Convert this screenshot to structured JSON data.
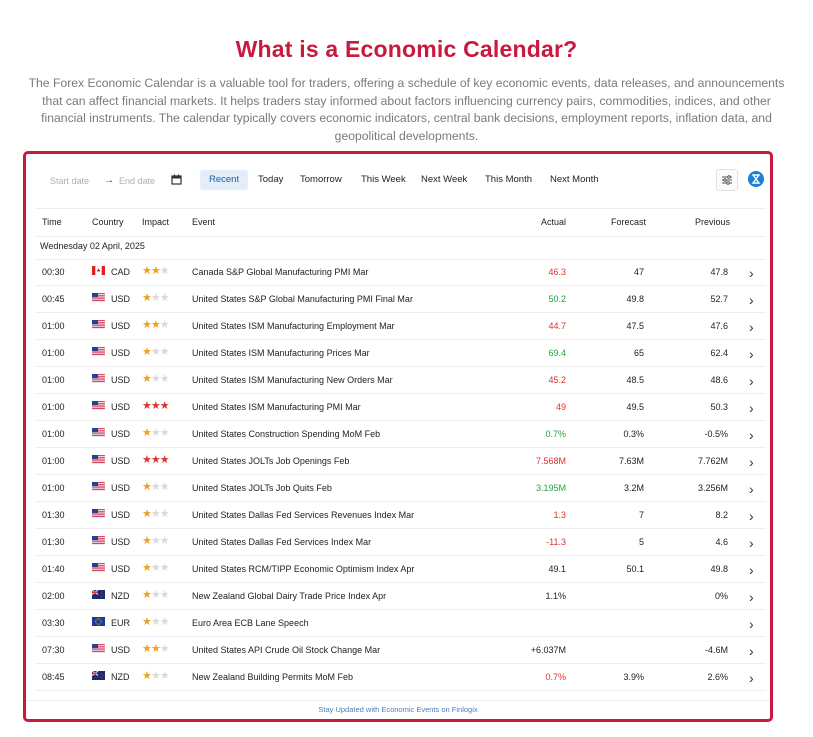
{
  "heading": "What is a Economic Calendar?",
  "intro": "The Forex Economic Calendar is a valuable tool for traders, offering a schedule of key economic events, data releases, and announcements that can affect financial markets. It helps traders stay informed about factors influencing currency pairs, commodities, indices, and other financial instruments. The calendar typically covers economic indicators, central bank decisions, employment reports, inflation data, and geopolitical developments.",
  "toolbar": {
    "start_placeholder": "Start date",
    "arrow": "→",
    "end_placeholder": "End date",
    "tabs": [
      "Recent",
      "Today",
      "Tomorrow",
      "This Week",
      "Next Week",
      "This Month",
      "Next Month"
    ],
    "active_tab": "Recent"
  },
  "columns": {
    "time": "Time",
    "country": "Country",
    "impact": "Impact",
    "event": "Event",
    "actual": "Actual",
    "forecast": "Forecast",
    "previous": "Previous"
  },
  "date_group": "Wednesday 02 April, 2025",
  "colors": {
    "accent": "#c8193e",
    "positive": "#21a641",
    "negative": "#e03131",
    "star_on_low": "#f0a020",
    "star_on_high": "#e03131",
    "star_off": "#d9d9d9"
  },
  "events": [
    {
      "time": "00:30",
      "flag": "ca-flag",
      "currency": "CAD",
      "impact": 2,
      "event": "Canada S&P Global Manufacturing PMI Mar",
      "actual": "46.3",
      "actual_tone": "neg",
      "forecast": "47",
      "previous": "47.8"
    },
    {
      "time": "00:45",
      "flag": "us-flag",
      "currency": "USD",
      "impact": 1,
      "event": "United States S&P Global Manufacturing PMI Final Mar",
      "actual": "50.2",
      "actual_tone": "pos",
      "forecast": "49.8",
      "previous": "52.7"
    },
    {
      "time": "01:00",
      "flag": "us-flag",
      "currency": "USD",
      "impact": 2,
      "event": "United States ISM Manufacturing Employment Mar",
      "actual": "44.7",
      "actual_tone": "neg",
      "forecast": "47.5",
      "previous": "47.6"
    },
    {
      "time": "01:00",
      "flag": "us-flag",
      "currency": "USD",
      "impact": 1,
      "event": "United States ISM Manufacturing Prices Mar",
      "actual": "69.4",
      "actual_tone": "pos",
      "forecast": "65",
      "previous": "62.4"
    },
    {
      "time": "01:00",
      "flag": "us-flag",
      "currency": "USD",
      "impact": 1,
      "event": "United States ISM Manufacturing New Orders Mar",
      "actual": "45.2",
      "actual_tone": "neg",
      "forecast": "48.5",
      "previous": "48.6"
    },
    {
      "time": "01:00",
      "flag": "us-flag",
      "currency": "USD",
      "impact": 3,
      "event": "United States ISM Manufacturing PMI Mar",
      "actual": "49",
      "actual_tone": "neg",
      "forecast": "49.5",
      "previous": "50.3"
    },
    {
      "time": "01:00",
      "flag": "us-flag",
      "currency": "USD",
      "impact": 1,
      "event": "United States Construction Spending MoM Feb",
      "actual": "0.7%",
      "actual_tone": "pos",
      "forecast": "0.3%",
      "previous": "-0.5%"
    },
    {
      "time": "01:00",
      "flag": "us-flag",
      "currency": "USD",
      "impact": 3,
      "event": "United States JOLTs Job Openings Feb",
      "actual": "7.568M",
      "actual_tone": "neg",
      "forecast": "7.63M",
      "previous": "7.762M"
    },
    {
      "time": "01:00",
      "flag": "us-flag",
      "currency": "USD",
      "impact": 1,
      "event": "United States JOLTs Job Quits Feb",
      "actual": "3.195M",
      "actual_tone": "pos",
      "forecast": "3.2M",
      "previous": "3.256M"
    },
    {
      "time": "01:30",
      "flag": "us-flag",
      "currency": "USD",
      "impact": 1,
      "event": "United States Dallas Fed Services Revenues Index Mar",
      "actual": "1.3",
      "actual_tone": "neg",
      "forecast": "7",
      "previous": "8.2"
    },
    {
      "time": "01:30",
      "flag": "us-flag",
      "currency": "USD",
      "impact": 1,
      "event": "United States Dallas Fed Services Index Mar",
      "actual": "-11.3",
      "actual_tone": "neg",
      "forecast": "5",
      "previous": "4.6"
    },
    {
      "time": "01:40",
      "flag": "us-flag",
      "currency": "USD",
      "impact": 1,
      "event": "United States RCM/TIPP Economic Optimism Index Apr",
      "actual": "49.1",
      "actual_tone": "neu",
      "forecast": "50.1",
      "previous": "49.8"
    },
    {
      "time": "02:00",
      "flag": "nz-flag",
      "currency": "NZD",
      "impact": 1,
      "event": "New Zealand Global Dairy Trade Price Index Apr",
      "actual": "1.1%",
      "actual_tone": "neu",
      "forecast": "",
      "previous": "0%"
    },
    {
      "time": "03:30",
      "flag": "eu-flag",
      "currency": "EUR",
      "impact": 1,
      "event": "Euro Area ECB Lane Speech",
      "actual": "",
      "actual_tone": "neu",
      "forecast": "",
      "previous": ""
    },
    {
      "time": "07:30",
      "flag": "us-flag",
      "currency": "USD",
      "impact": 2,
      "event": "United States API Crude Oil Stock Change Mar",
      "actual": "+6.037M",
      "actual_tone": "neu",
      "forecast": "",
      "previous": "-4.6M"
    },
    {
      "time": "08:45",
      "flag": "nz-flag",
      "currency": "NZD",
      "impact": 1,
      "event": "New Zealand Building Permits MoM Feb",
      "actual": "0.7%",
      "actual_tone": "neg",
      "forecast": "3.9%",
      "previous": "2.6%"
    }
  ],
  "footer_link": "Stay Updated with Economic Events on Finlogix"
}
